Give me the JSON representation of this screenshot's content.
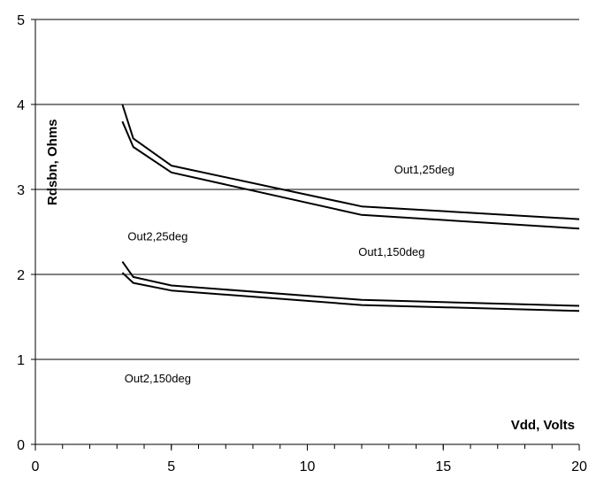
{
  "chart_data": {
    "type": "line",
    "title": "",
    "xlabel": "Vdd, Volts",
    "ylabel": "Rdsbn, Ohms",
    "xlim": [
      0,
      20
    ],
    "ylim": [
      0,
      5
    ],
    "x_ticks": [
      "0",
      "5",
      "10",
      "15",
      "20"
    ],
    "y_ticks": [
      "0",
      "1",
      "2",
      "3",
      "4",
      "5"
    ],
    "x_minor_step": 1,
    "grid": "horizontal major gridlines",
    "legend": "none",
    "line_color": "#000000",
    "series": [
      {
        "x": [
          3.2,
          3.6,
          5,
          12,
          20
        ],
        "y": [
          4.0,
          3.6,
          3.28,
          2.8,
          2.65
        ]
      },
      {
        "x": [
          3.2,
          3.6,
          5,
          12,
          20
        ],
        "y": [
          3.8,
          3.5,
          3.2,
          2.7,
          2.54
        ]
      },
      {
        "x": [
          3.2,
          3.6,
          5,
          12,
          20
        ],
        "y": [
          2.15,
          1.97,
          1.87,
          1.7,
          1.63
        ]
      },
      {
        "x": [
          3.2,
          3.6,
          5,
          12,
          20
        ],
        "y": [
          2.02,
          1.9,
          1.81,
          1.64,
          1.57
        ]
      }
    ],
    "annotations": [
      {
        "text": "Out1,25deg",
        "x": 14.3,
        "y": 3.19
      },
      {
        "text": "Out2,25deg",
        "x": 4.5,
        "y": 2.4
      },
      {
        "text": "Out1,150deg",
        "x": 13.1,
        "y": 2.22
      },
      {
        "text": "Out2,150deg",
        "x": 4.5,
        "y": 0.73
      }
    ]
  }
}
